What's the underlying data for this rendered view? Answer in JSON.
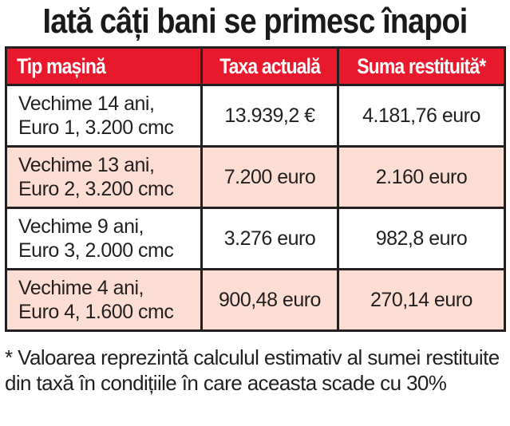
{
  "title": "Iată câți bani se primesc înapoi",
  "table": {
    "headers": [
      "Tip mașină",
      "Taxa actuală",
      "Suma restituită*"
    ],
    "rows": [
      {
        "car_line1": "Vechime 14 ani,",
        "car_line2": "Euro 1, 3.200 cmc",
        "tax": "13.939,2 €",
        "refund": "4.181,76 euro"
      },
      {
        "car_line1": "Vechime 13 ani,",
        "car_line2": "Euro 2, 3.200 cmc",
        "tax": "7.200 euro",
        "refund": "2.160 euro"
      },
      {
        "car_line1": "Vechime 9 ani,",
        "car_line2": "Euro 3, 2.000 cmc",
        "tax": "3.276 euro",
        "refund": "982,8 euro"
      },
      {
        "car_line1": "Vechime 4 ani,",
        "car_line2": "Euro 4, 1.600 cmc",
        "tax": "900,48 euro",
        "refund": "270,14 euro"
      }
    ]
  },
  "footnote": "* Valoarea reprezintă calculul estimativ al sumei restituite din taxă în condițiile în care aceasta scade cu 30%",
  "colors": {
    "header_bg": "#e8192c",
    "alt_row_bg": "#fbddd3",
    "border": "#231f20"
  }
}
